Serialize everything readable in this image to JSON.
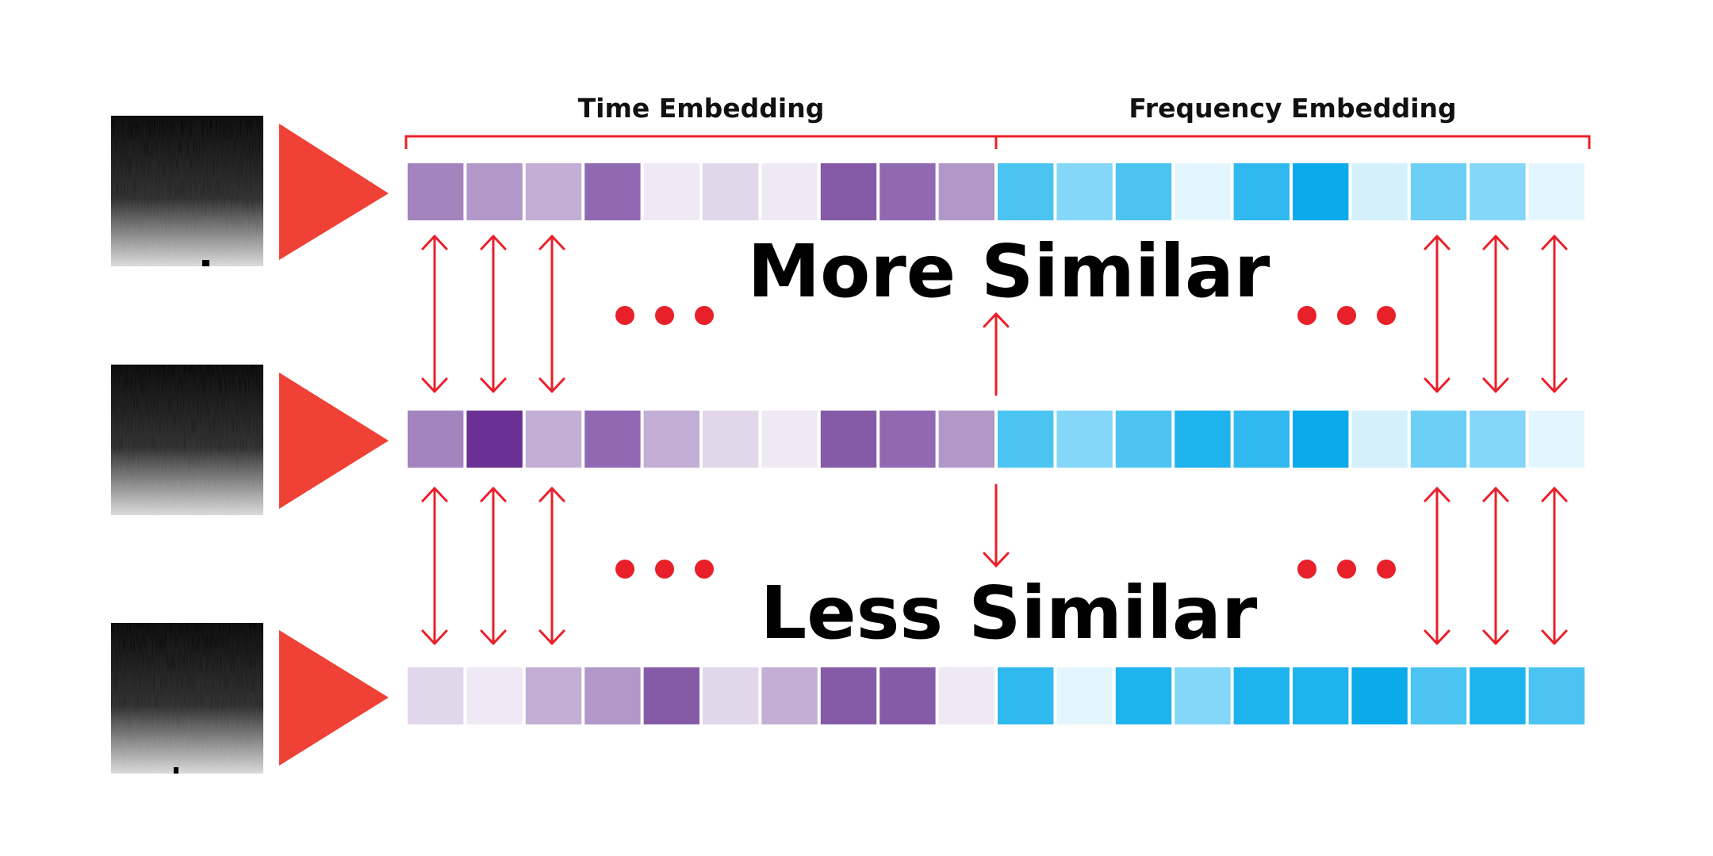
{
  "labels": {
    "time_section": "Time Embedding",
    "frequency_section": "Frequency Embedding",
    "more_similar": "More Similar",
    "less_similar": "Less Similar"
  },
  "colors": {
    "accent_red": "#e8202a",
    "encoder_red": "#ef4136",
    "time_palette": [
      "#efe9f5",
      "#e1d6ea",
      "#c3aed6",
      "#b198c9",
      "#a384bf",
      "#9169b2",
      "#855ba8",
      "#6a3093"
    ],
    "frequency_palette": [
      "#e4f6fd",
      "#d3f0fb",
      "#84d7f8",
      "#6ecff6",
      "#4bc4f1",
      "#30b9ef",
      "#1fb3ee",
      "#0aaaeb"
    ]
  },
  "embeddings": [
    {
      "time": [
        4,
        3,
        2,
        5,
        0,
        1,
        0,
        6,
        5,
        3
      ],
      "frequency": [
        4,
        2,
        4,
        0,
        5,
        7,
        1,
        3,
        2,
        0
      ]
    },
    {
      "time": [
        4,
        7,
        2,
        5,
        2,
        1,
        0,
        6,
        5,
        3
      ],
      "frequency": [
        4,
        2,
        4,
        6,
        5,
        7,
        1,
        3,
        2,
        0
      ]
    },
    {
      "time": [
        1,
        0,
        2,
        3,
        6,
        1,
        2,
        6,
        6,
        0
      ],
      "frequency": [
        5,
        0,
        6,
        2,
        6,
        6,
        7,
        4,
        6,
        4
      ]
    }
  ],
  "comparisons": {
    "top": {
      "label": "More Similar",
      "direction": "up"
    },
    "bottom": {
      "label": "Less Similar",
      "direction": "down"
    }
  },
  "icons": {
    "encoder": "encoder-triangle-icon",
    "spectrogram": "spectrogram-icon",
    "ellipsis": "ellipsis-icon",
    "arrow": "double-arrow-icon"
  }
}
